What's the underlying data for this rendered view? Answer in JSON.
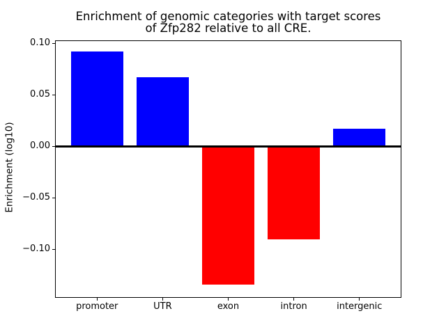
{
  "figure": {
    "title_line1": "Enrichment of genomic categories with target scores",
    "title_line2": "of Zfp282 relative to all CRE.",
    "background_color": "#ffffff"
  },
  "chart_data": {
    "type": "bar",
    "title": "Enrichment of genomic categories with target scores of Zfp282 relative to all CRE.",
    "xlabel": "",
    "ylabel": "Enrichment (log10)",
    "categories": [
      "promoter",
      "UTR",
      "exon",
      "intron",
      "intergenic"
    ],
    "values": [
      0.092,
      0.067,
      -0.134,
      -0.09,
      0.017
    ],
    "bar_colors": [
      "#0000ff",
      "#0000ff",
      "#ff0000",
      "#ff0000",
      "#0000ff"
    ],
    "positive_color": "#0000ff",
    "negative_color": "#ff0000",
    "ytick_values": [
      0.1,
      0.05,
      0.0,
      -0.05,
      -0.1
    ],
    "ytick_labels": [
      "0.10",
      "0.05",
      "0.00",
      "−0.05",
      "−0.10"
    ],
    "ylim": [
      -0.147,
      0.103
    ],
    "bar_width_fraction": 0.8,
    "zero_line": {
      "value": 0,
      "color": "#000000"
    },
    "grid": false,
    "legend_position": "none",
    "axis_color": "#000000"
  }
}
